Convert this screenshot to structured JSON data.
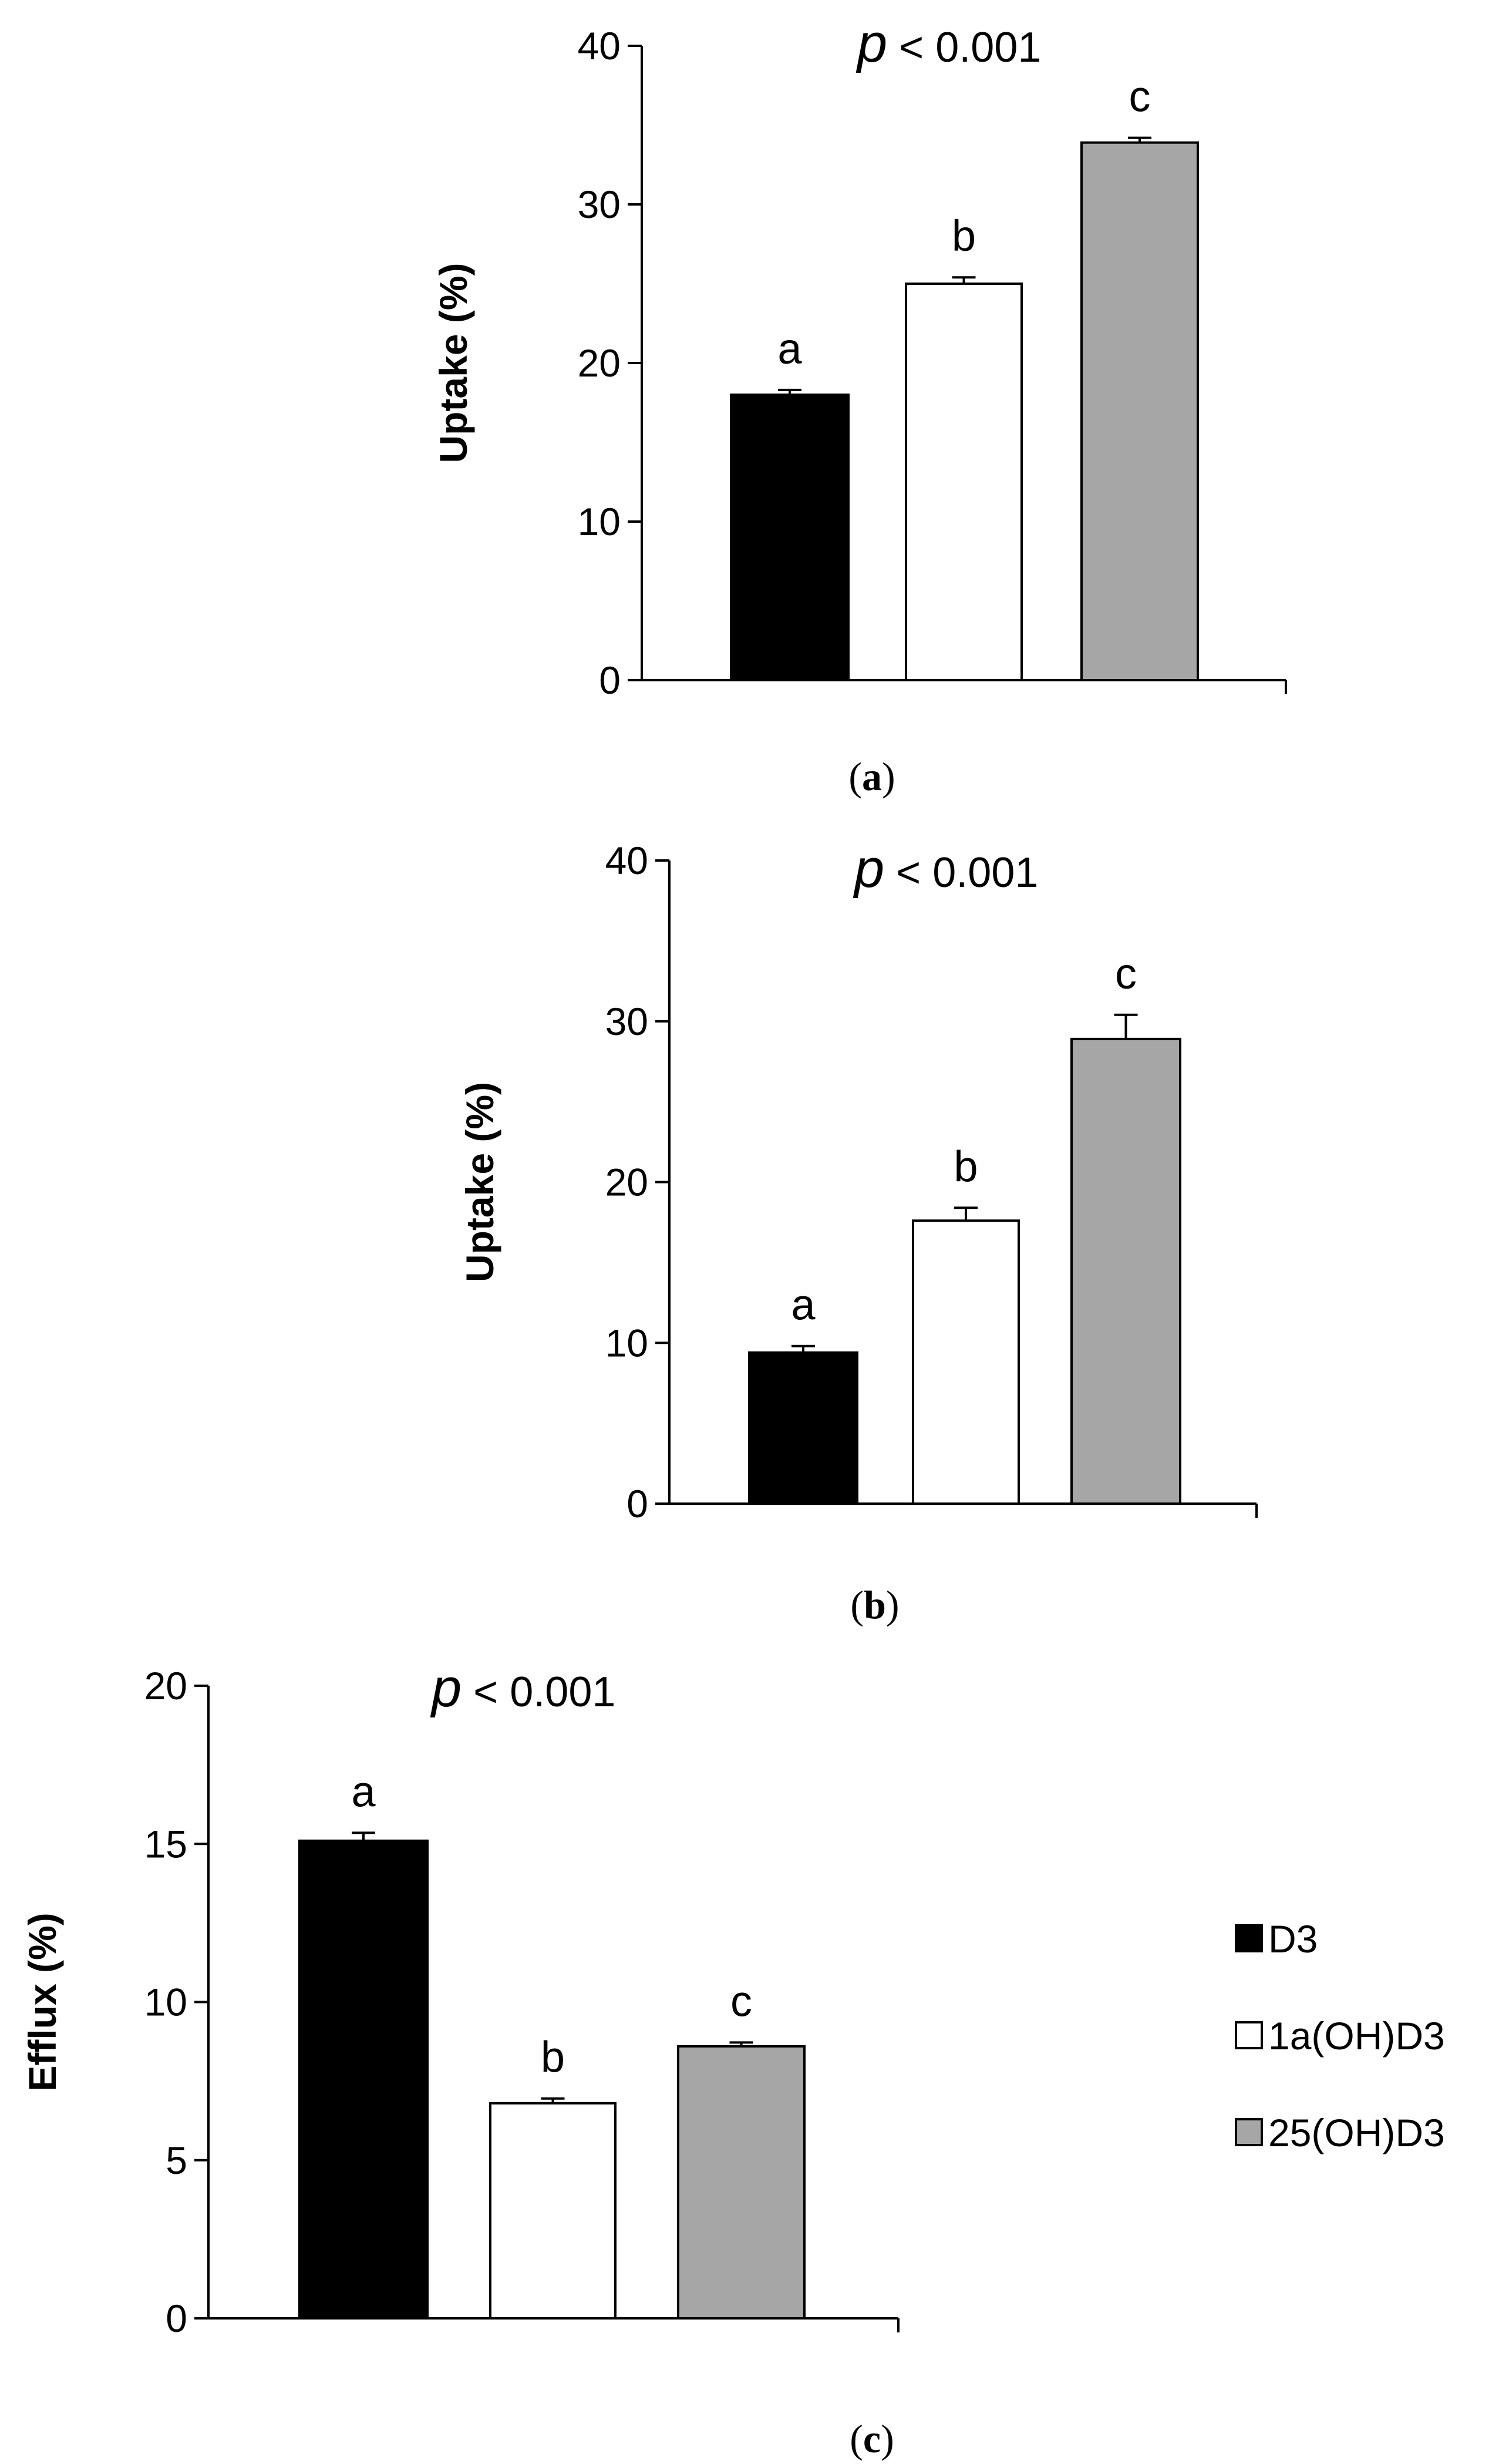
{
  "chart_data": [
    {
      "type": "bar",
      "panel": "(a)",
      "caption_letter": "a",
      "categories": [
        "D3",
        "1a(OH)D3",
        "25(OH)D3"
      ],
      "values": [
        18.0,
        25.0,
        33.9
      ],
      "errors": [
        0.3,
        0.4,
        0.3
      ],
      "significance_letters": [
        "a",
        "b",
        "c"
      ],
      "colors": [
        "#000000",
        "#ffffff",
        "#a6a6a6"
      ],
      "ylabel": "Uptake (%)",
      "xlabel": "",
      "ylim": [
        0,
        40
      ],
      "yticks": [
        0,
        10,
        20,
        30,
        40
      ],
      "pvalue": {
        "p": "p",
        "rest": " < 0.001"
      }
    },
    {
      "type": "bar",
      "panel": "(b)",
      "caption_letter": "b",
      "categories": [
        "D3",
        "1a(OH)D3",
        "25(OH)D3"
      ],
      "values": [
        9.4,
        17.6,
        28.9
      ],
      "errors": [
        0.4,
        0.8,
        1.5
      ],
      "significance_letters": [
        "a",
        "b",
        "c"
      ],
      "colors": [
        "#000000",
        "#ffffff",
        "#a6a6a6"
      ],
      "ylabel": "Uptake (%)",
      "xlabel": "",
      "ylim": [
        0,
        40
      ],
      "yticks": [
        0,
        10,
        20,
        30,
        40
      ],
      "pvalue": {
        "p": "p",
        "rest": " < 0.001"
      }
    },
    {
      "type": "bar",
      "panel": "(c)",
      "caption_letter": "c",
      "categories": [
        "D3",
        "1a(OH)D3",
        "25(OH)D3"
      ],
      "values": [
        15.1,
        6.8,
        8.6
      ],
      "errors": [
        0.25,
        0.15,
        0.12
      ],
      "significance_letters": [
        "a",
        "b",
        "c"
      ],
      "colors": [
        "#000000",
        "#ffffff",
        "#a6a6a6"
      ],
      "ylabel": "Efflux (%)",
      "xlabel": "",
      "ylim": [
        0,
        20
      ],
      "yticks": [
        0,
        5,
        10,
        15,
        20
      ],
      "pvalue": {
        "p": "p",
        "rest": " < 0.001"
      }
    }
  ],
  "legend": {
    "items": [
      {
        "label": "D3",
        "color": "#000000"
      },
      {
        "label": "1a(OH)D3",
        "color": "#ffffff"
      },
      {
        "label": "25(OH)D3",
        "color": "#a6a6a6"
      }
    ]
  }
}
